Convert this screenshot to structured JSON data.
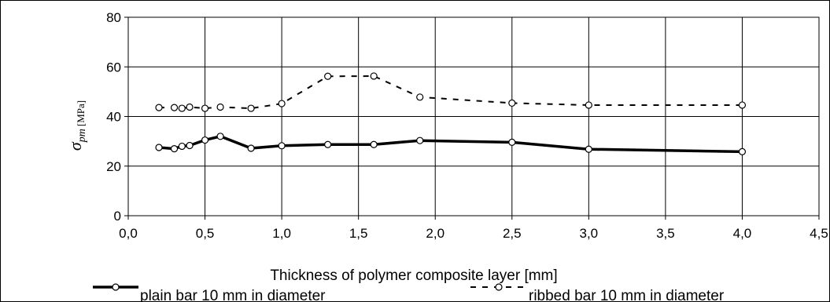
{
  "chart_data": {
    "type": "line",
    "xlabel": "Thickness of polymer composite layer [mm]",
    "ylabel": {
      "symbol": "σ",
      "subscript": "pm",
      "unit": "[MPa]"
    },
    "xlim": [
      0,
      4.5
    ],
    "ylim": [
      0,
      80
    ],
    "x_ticks": [
      "0,0",
      "0,5",
      "1,0",
      "1,5",
      "2,0",
      "2,5",
      "3,0",
      "3,5",
      "4,0",
      "4,5"
    ],
    "y_ticks": [
      "0",
      "20",
      "40",
      "60",
      "80"
    ],
    "grid": true,
    "legend_position": "bottom",
    "series": [
      {
        "name": "plain bar 10 mm in diameter",
        "style": "solid",
        "color": "#000000",
        "x": [
          0.2,
          0.3,
          0.35,
          0.4,
          0.5,
          0.6,
          0.8,
          1.0,
          1.3,
          1.6,
          1.9,
          2.5,
          3.0,
          4.0
        ],
        "y": [
          27.5,
          27,
          28,
          28.3,
          30.5,
          32,
          27.2,
          28.2,
          28.7,
          28.7,
          30.3,
          29.6,
          26.8,
          25.8
        ]
      },
      {
        "name": "ribbed bar 10 mm in diameter",
        "style": "dashed",
        "color": "#000000",
        "x": [
          0.2,
          0.3,
          0.35,
          0.4,
          0.5,
          0.6,
          0.8,
          1.0,
          1.3,
          1.6,
          1.9,
          2.5,
          3.0,
          4.0
        ],
        "y": [
          43.6,
          43.6,
          43.3,
          43.8,
          43.3,
          43.8,
          43.3,
          45.2,
          56.2,
          56.3,
          47.8,
          45.4,
          44.6,
          44.6
        ]
      }
    ]
  }
}
